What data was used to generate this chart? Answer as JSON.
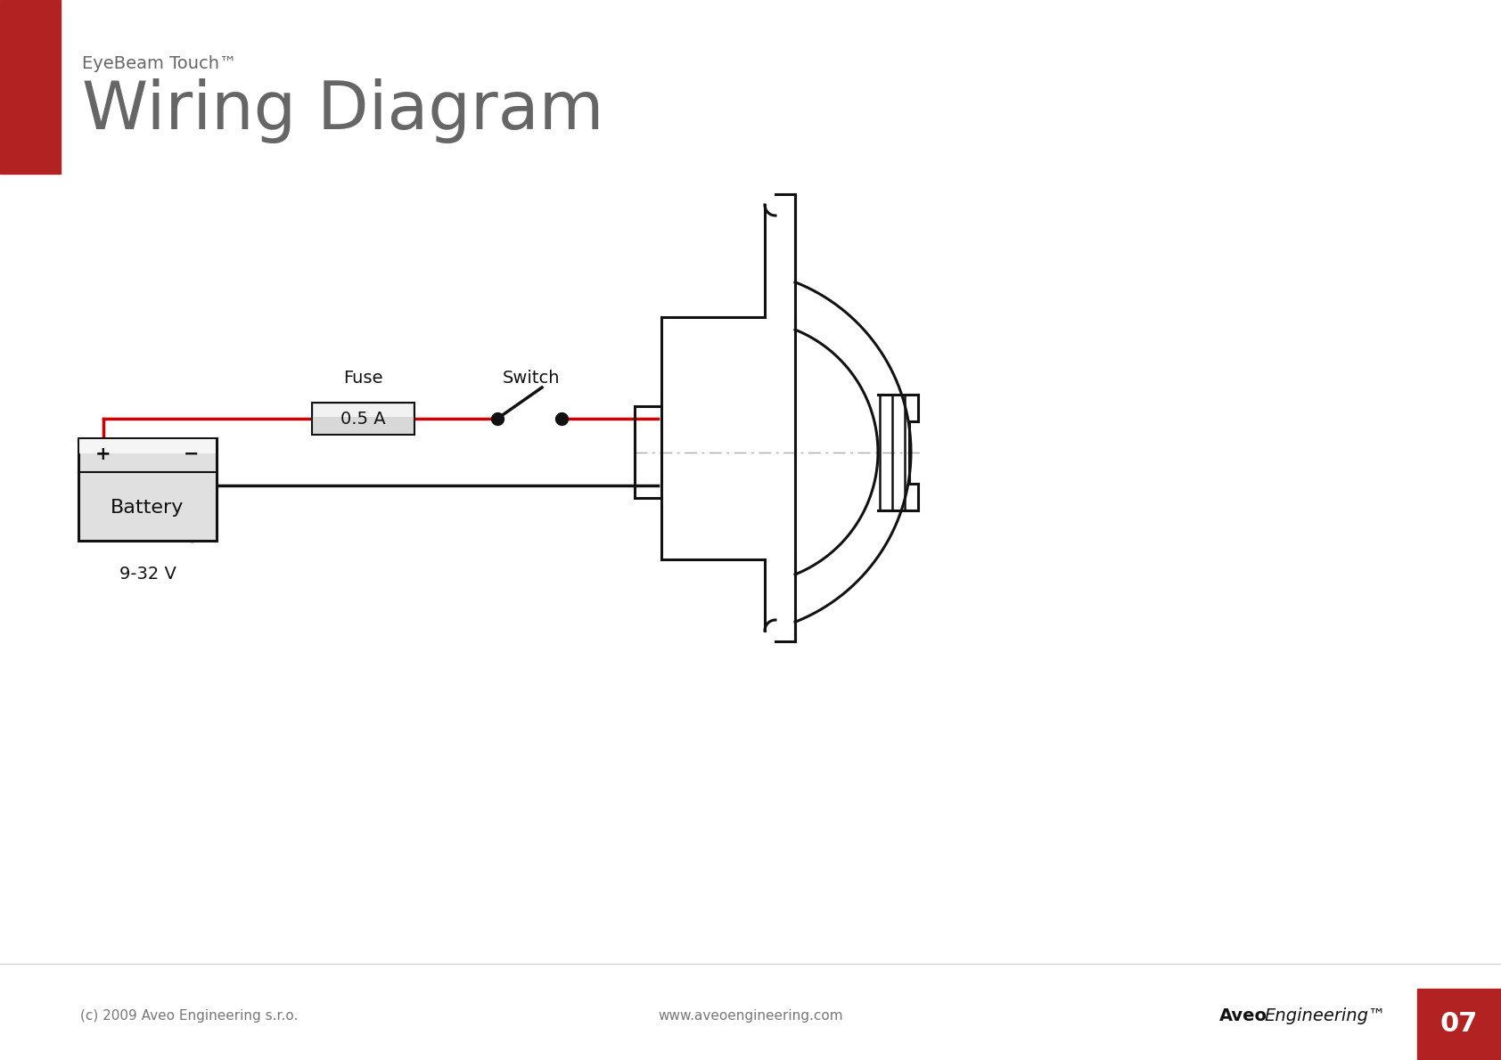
{
  "title_small": "EyeBeam Touch™",
  "title_large": "Wiring Diagram",
  "bg_color": "#ffffff",
  "red_accent_color": "#b22222",
  "wire_red": "#cc0000",
  "wire_black": "#111111",
  "text_color": "#666666",
  "black_color": "#111111",
  "footer_left": "(c) 2009 Aveo Engineering s.r.o.",
  "footer_center": "www.aveoengineering.com",
  "footer_brand": "Aveo",
  "footer_brand2": "Engineering™",
  "page_number": "07",
  "fuse_label": "Fuse",
  "fuse_value": "0.5 A",
  "switch_label": "Switch",
  "battery_label": "Battery",
  "battery_voltage": "9-32 V",
  "battery_plus": "+",
  "battery_minus": "−",
  "lw": 2.2
}
